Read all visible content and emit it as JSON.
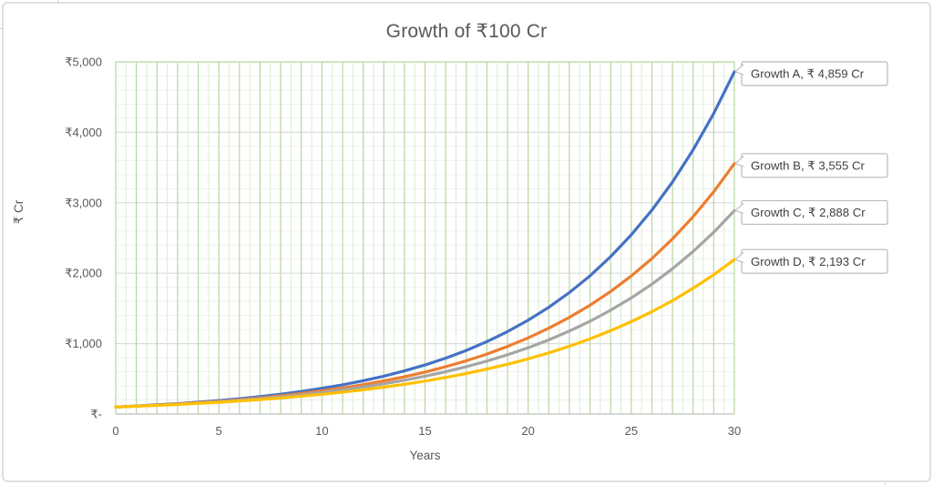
{
  "chart_data": {
    "type": "line",
    "title": "Growth of ₹100 Cr",
    "xlabel": "Years",
    "ylabel": "₹ Cr",
    "xlim": [
      0,
      30
    ],
    "ylim": [
      0,
      5000
    ],
    "x_ticks": {
      "values": [
        0,
        5,
        10,
        15,
        20,
        25,
        30
      ],
      "labels": [
        "0",
        "5",
        "10",
        "15",
        "20",
        "25",
        "30"
      ]
    },
    "y_ticks": {
      "values": [
        0,
        1000,
        2000,
        3000,
        4000,
        5000
      ],
      "labels": [
        "₹-",
        "₹1,000",
        "₹2,000",
        "₹3,000",
        "₹4,000",
        "₹5,000"
      ]
    },
    "grid": {
      "x_minor_step": 0.5,
      "x_major_step": 1,
      "y_minor_step": 200,
      "y_major_step": 1000,
      "x_major_color": "#b6d7a0",
      "x_minor_color": "#dcedd0",
      "y_major_color": "#dcdcdc",
      "y_minor_color": "#f0f0f0",
      "top_border_color": "#b6d7a0",
      "axis_line_color": "#c9c9c9"
    },
    "x": [
      0,
      1,
      2,
      3,
      4,
      5,
      6,
      7,
      8,
      9,
      10,
      11,
      12,
      13,
      14,
      15,
      16,
      17,
      18,
      19,
      20,
      21,
      22,
      23,
      24,
      25,
      26,
      27,
      28,
      29,
      30
    ],
    "series": [
      {
        "name": "Growth A",
        "color": "#4472C4",
        "callout_label": "Growth A, ₹ 4,859 Cr",
        "end_value": 4859,
        "values": [
          100,
          114,
          130,
          147,
          168,
          191,
          217,
          247,
          282,
          321,
          365,
          415,
          473,
          538,
          612,
          697,
          793,
          903,
          1028,
          1170,
          1332,
          1516,
          1725,
          1963,
          2235,
          2544,
          2895,
          3295,
          3751,
          4269,
          4859
        ]
      },
      {
        "name": "Growth B",
        "color": "#ED7D31",
        "callout_label": "Growth B, ₹ 3,555 Cr",
        "end_value": 3555,
        "values": [
          100,
          113,
          127,
          143,
          161,
          181,
          204,
          230,
          259,
          292,
          329,
          370,
          417,
          470,
          529,
          596,
          672,
          756,
          852,
          960,
          1081,
          1218,
          1372,
          1545,
          1740,
          1960,
          2208,
          2487,
          2801,
          3156,
          3555
        ]
      },
      {
        "name": "Growth C",
        "color": "#A5A5A5",
        "callout_label": "Growth C, ₹ 2,888 Cr",
        "end_value": 2888,
        "values": [
          100,
          112,
          125,
          140,
          157,
          175,
          196,
          219,
          245,
          274,
          307,
          343,
          384,
          429,
          480,
          537,
          601,
          672,
          752,
          841,
          941,
          1053,
          1178,
          1317,
          1474,
          1649,
          1844,
          2063,
          2308,
          2581,
          2888
        ]
      },
      {
        "name": "Growth D",
        "color": "#FFC000",
        "callout_label": "Growth D, ₹ 2,193 Cr",
        "end_value": 2193,
        "values": [
          100,
          111,
          123,
          136,
          151,
          167,
          185,
          206,
          228,
          253,
          280,
          310,
          344,
          381,
          422,
          468,
          519,
          575,
          638,
          707,
          783,
          868,
          963,
          1067,
          1183,
          1311,
          1453,
          1610,
          1785,
          1978,
          2193
        ]
      }
    ],
    "callout_style": {
      "fill": "#ffffff",
      "border": "#bfbfbf",
      "text_color": "#404040"
    }
  }
}
